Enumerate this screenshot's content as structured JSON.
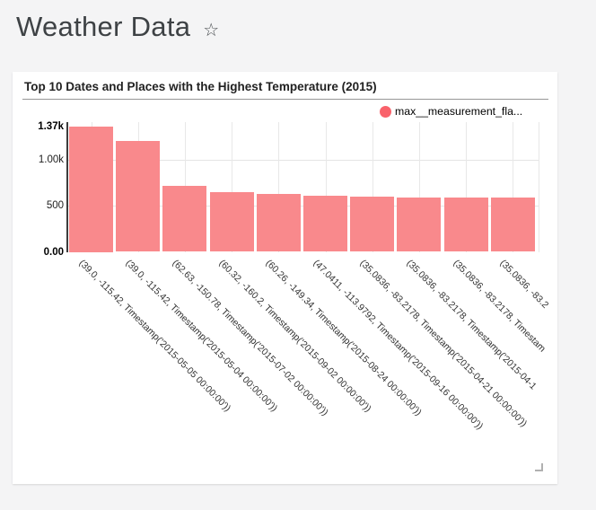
{
  "page": {
    "title": "Weather Data",
    "favorite_icon": "☆"
  },
  "card": {
    "title": "Top 10 Dates and Places with the Highest Temperature (2015)",
    "legend": {
      "label": "max__measurement_fla...",
      "color": "#f9626b"
    }
  },
  "chart_data": {
    "type": "bar",
    "title": "Top 10 Dates and Places with the Highest Temperature (2015)",
    "legend": [
      "max__measurement_fla..."
    ],
    "legend_position": "top-right",
    "bar_color": "#f9898c",
    "grid": true,
    "x_tick_rotation": 45,
    "xlabel": "",
    "ylabel": "",
    "ylim": [
      0,
      1370
    ],
    "y_ticks": [
      {
        "label": "0.00",
        "value": 0,
        "bold": true,
        "gridline": false
      },
      {
        "label": "500",
        "value": 500,
        "bold": false,
        "gridline": true
      },
      {
        "label": "1.00k",
        "value": 1000,
        "bold": false,
        "gridline": true
      },
      {
        "label": "1.37k",
        "value": 1370,
        "bold": true,
        "gridline": false
      }
    ],
    "categories": [
      "(39.0, -115.42, Timestamp('2015-05-05 00:00:00'))",
      "(39.0, -115.42, Timestamp('2015-05-04 00:00:00'))",
      "(62.63, -150.78, Timestamp('2015-07-02 00:00:00'))",
      "(60.32, -160.2, Timestamp('2015-09-02 00:00:00'))",
      "(60.26, -149.34, Timestamp('2015-08-24 00:00:00'))",
      "(47.0411, -113.9792, Timestamp('2015-09-16 00:00:00'))",
      "(35.0836, -83.2178, Timestamp('2015-04-21 00:00:00'))",
      "(35.0836, -83.2178, Timestamp('2015-04-1",
      "(35.0836, -83.2178, Timestam",
      "(35.0836, -83.2"
    ],
    "values": [
      1370,
      1212,
      724,
      646,
      636,
      611,
      598,
      596,
      595,
      588
    ]
  }
}
